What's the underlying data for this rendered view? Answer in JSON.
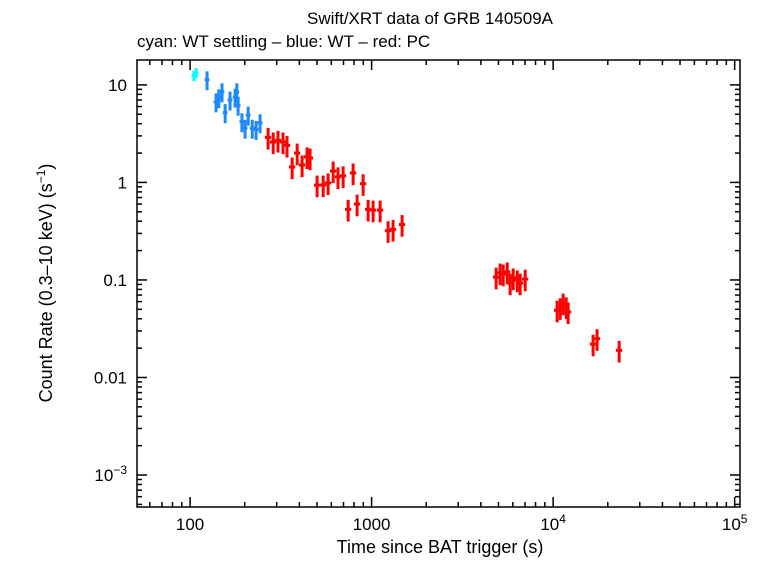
{
  "chart_data": {
    "type": "scatter",
    "title": "Swift/XRT data of GRB 140509A",
    "subtitle": "cyan: WT settling – blue: WT – red: PC",
    "xlabel": "Time since BAT trigger (s)",
    "ylabel": "Count Rate (0.3–10 keV) (s",
    "ylabel_sup": "−1",
    "ylabel_end": ")",
    "xscale": "log",
    "yscale": "log",
    "xlim": [
      51,
      107000
    ],
    "ylim": [
      0.00047,
      18
    ],
    "xticks": [
      {
        "v": 100,
        "t": "100"
      },
      {
        "v": 1000,
        "t": "1000"
      },
      {
        "v": 10000,
        "t": "10",
        "sup": "4"
      },
      {
        "v": 100000,
        "t": "10",
        "sup": "5"
      }
    ],
    "yticks": [
      {
        "v": 10,
        "t": "10"
      },
      {
        "v": 1,
        "t": "1"
      },
      {
        "v": 0.1,
        "t": "0.1"
      },
      {
        "v": 0.01,
        "t": "0.01"
      },
      {
        "v": 0.001,
        "t": "10",
        "sup": "−3"
      }
    ],
    "grid": false,
    "series": [
      {
        "color": "#00ffff",
        "rel_xerr": 0.03,
        "rel_yerr": 0.12,
        "points": [
          [
            105,
            12.4
          ],
          [
            108,
            13.3
          ]
        ]
      },
      {
        "color": "#1e88ff",
        "rel_xerr": 0.03,
        "rel_yerr": 0.22,
        "points": [
          [
            124,
            11.3
          ],
          [
            139,
            6.7
          ],
          [
            144,
            7.4
          ],
          [
            150,
            8.5
          ],
          [
            156,
            5.2
          ],
          [
            166,
            7.0
          ],
          [
            177,
            7.5
          ],
          [
            181,
            8.5
          ],
          [
            184,
            6.2
          ],
          [
            193,
            4.2
          ],
          [
            201,
            3.6
          ],
          [
            209,
            4.9
          ],
          [
            220,
            3.6
          ],
          [
            231,
            3.5
          ],
          [
            243,
            4.1
          ]
        ]
      },
      {
        "color": "#ff0000",
        "rel_xerr": 0.04,
        "rel_yerr": 0.25,
        "points": [
          [
            269,
            2.9
          ],
          [
            287,
            2.6
          ],
          [
            305,
            2.7
          ],
          [
            325,
            2.6
          ],
          [
            342,
            2.4
          ],
          [
            365,
            1.44
          ],
          [
            389,
            2.0
          ],
          [
            414,
            1.51
          ],
          [
            441,
            1.83
          ],
          [
            458,
            1.78
          ],
          [
            501,
            0.94
          ],
          [
            541,
            0.94
          ],
          [
            576,
            0.99
          ],
          [
            614,
            1.31
          ],
          [
            653,
            1.14
          ],
          [
            697,
            1.17
          ],
          [
            743,
            0.53
          ],
          [
            791,
            1.25
          ],
          [
            832,
            0.6
          ],
          [
            898,
            0.97
          ],
          [
            957,
            0.53
          ],
          [
            1019,
            0.52
          ],
          [
            1114,
            0.52
          ],
          [
            1233,
            0.32
          ],
          [
            1313,
            0.33
          ],
          [
            1472,
            0.37
          ],
          [
            4852,
            0.107
          ],
          [
            5105,
            0.118
          ],
          [
            5309,
            0.115
          ],
          [
            5585,
            0.121
          ],
          [
            5796,
            0.093
          ],
          [
            6026,
            0.105
          ],
          [
            6340,
            0.1
          ],
          [
            6580,
            0.093
          ],
          [
            7015,
            0.102
          ],
          [
            10520,
            0.049
          ],
          [
            10940,
            0.052
          ],
          [
            11350,
            0.058
          ],
          [
            11800,
            0.053
          ],
          [
            12100,
            0.047
          ],
          [
            16600,
            0.022
          ],
          [
            17460,
            0.025
          ],
          [
            23100,
            0.019
          ]
        ]
      }
    ]
  }
}
